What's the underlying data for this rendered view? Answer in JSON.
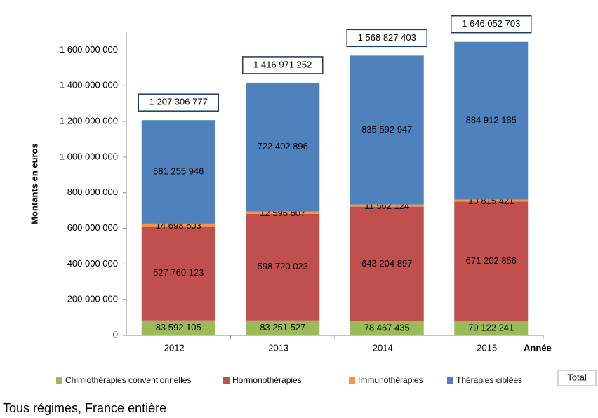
{
  "chart_data": {
    "type": "stacked_bar",
    "y_label": "Montants en euros",
    "x_label": "Année",
    "categories": [
      "2012",
      "2013",
      "2014",
      "2015"
    ],
    "series": [
      {
        "name": "Chimiothérapies conventionnelles",
        "color": "#9bbb59",
        "values": [
          83592105,
          83251527,
          78467435,
          79122241
        ],
        "value_labels": [
          "83 592 105",
          "83 251 527",
          "78 467 435",
          "79 122 241"
        ]
      },
      {
        "name": "Hormonothérapies",
        "color": "#c0504d",
        "values": [
          527760123,
          598720023,
          643204897,
          671202856
        ],
        "value_labels": [
          "527 760 123",
          "598 720 023",
          "643 204 897",
          "671 202 856"
        ]
      },
      {
        "name": "Immunothérapies",
        "color": "#f79646",
        "values": [
          14698603,
          12596807,
          11562124,
          10815421
        ],
        "value_labels": [
          "14 698 603",
          "12 596 807",
          "11 562 124",
          "10 815 421"
        ]
      },
      {
        "name": "Thérapies ciblées",
        "color": "#4f81bd",
        "values": [
          581255946,
          722402896,
          835592947,
          884912185
        ],
        "value_labels": [
          "581 255 946",
          "722 402 896",
          "835 592 947",
          "884 912 185"
        ]
      }
    ],
    "totals_name": "Total",
    "totals": [
      1207306777,
      1416971252,
      1568827403,
      1646052703
    ],
    "total_labels": [
      "1 207 306 777",
      "1 416 971 252",
      "1 568 827 403",
      "1 646 052 703"
    ],
    "ylim": [
      0,
      1700000000
    ],
    "yticks": [
      0,
      {
        "value": 200000000,
        "label": "200 000 000"
      },
      {
        "value": 400000000,
        "label": "400 000 000"
      },
      {
        "value": 600000000,
        "label": "600 000 000"
      },
      {
        "value": 800000000,
        "label": "800 000 000"
      },
      {
        "value": 1000000000,
        "label": "1 000 000 000"
      },
      {
        "value": 1200000000,
        "label": "1 200 000 000"
      },
      {
        "value": 1400000000,
        "label": "1 400 000 000"
      },
      {
        "value": 1600000000,
        "label": "1 600 000 000"
      }
    ],
    "footnote": "Tous régimes, France entière"
  }
}
